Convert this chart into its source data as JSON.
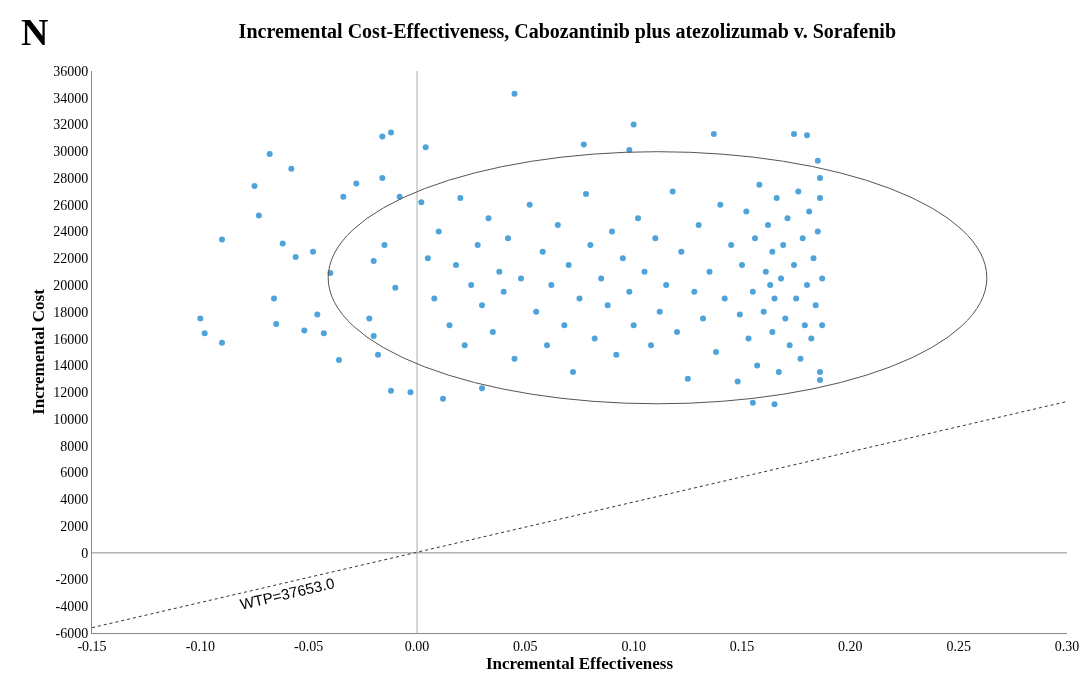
{
  "chart_data": {
    "type": "scatter",
    "title": "Incremental Cost-Effectiveness, Cabozantinib plus atezolizumab v. Sorafenib",
    "xlabel": "Incremental Effectiveness",
    "ylabel": "Incremental Cost",
    "annotations": [
      "N",
      "WTP=37653.0"
    ],
    "xlim": [
      -0.15,
      0.3
    ],
    "xticks": [
      {
        "value": -0.15,
        "label": "-0.15"
      },
      {
        "value": -0.1,
        "label": "-0.10"
      },
      {
        "value": -0.05,
        "label": "-0.05"
      },
      {
        "value": 0,
        "label": "0.00"
      },
      {
        "value": 0.05,
        "label": "0.05"
      },
      {
        "value": 0.1,
        "label": "0.10"
      },
      {
        "value": 0.15,
        "label": "0.15"
      },
      {
        "value": 0.2,
        "label": "0.20"
      },
      {
        "value": 0.25,
        "label": "0.25"
      },
      {
        "value": 0.3,
        "label": "0.30"
      }
    ],
    "ylim": [
      -6000,
      36000
    ],
    "yticks": [
      -6000,
      -4000,
      -2000,
      0,
      2000,
      4000,
      6000,
      8000,
      10000,
      12000,
      14000,
      16000,
      18000,
      20000,
      22000,
      24000,
      26000,
      28000,
      30000,
      32000,
      34000,
      36000
    ],
    "grid": false,
    "marker": "circle",
    "ref_lines": [
      {
        "axis": "x",
        "value": 0,
        "color": "#c8c8c8"
      },
      {
        "axis": "y",
        "value": 0,
        "color": "#b4b4b4"
      }
    ],
    "series": [
      {
        "color": "#4fa3db",
        "x": [
          -0.1,
          -0.098,
          -0.09,
          -0.09,
          -0.075,
          -0.073,
          -0.068,
          -0.066,
          -0.065,
          -0.062,
          -0.058,
          -0.056,
          -0.052,
          -0.048,
          -0.046,
          -0.043,
          -0.04,
          -0.036,
          -0.034,
          -0.028,
          -0.022,
          -0.02,
          -0.02,
          -0.018,
          -0.016,
          -0.016,
          -0.015,
          -0.012,
          -0.012,
          -0.01,
          -0.008,
          -0.003,
          0.002,
          0.004,
          0.005,
          0.008,
          0.01,
          0.012,
          0.015,
          0.018,
          0.02,
          0.022,
          0.025,
          0.028,
          0.03,
          0.03,
          0.033,
          0.035,
          0.038,
          0.04,
          0.042,
          0.045,
          0.045,
          0.048,
          0.052,
          0.055,
          0.058,
          0.06,
          0.062,
          0.065,
          0.068,
          0.07,
          0.072,
          0.075,
          0.077,
          0.078,
          0.08,
          0.082,
          0.085,
          0.088,
          0.09,
          0.092,
          0.095,
          0.098,
          0.098,
          0.1,
          0.1,
          0.102,
          0.105,
          0.108,
          0.11,
          0.112,
          0.115,
          0.118,
          0.12,
          0.122,
          0.125,
          0.128,
          0.13,
          0.132,
          0.135,
          0.137,
          0.138,
          0.14,
          0.142,
          0.145,
          0.148,
          0.149,
          0.15,
          0.152,
          0.153,
          0.155,
          0.155,
          0.156,
          0.157,
          0.158,
          0.16,
          0.161,
          0.162,
          0.163,
          0.164,
          0.164,
          0.165,
          0.165,
          0.166,
          0.167,
          0.168,
          0.169,
          0.17,
          0.171,
          0.172,
          0.174,
          0.174,
          0.175,
          0.176,
          0.177,
          0.178,
          0.179,
          0.18,
          0.18,
          0.181,
          0.182,
          0.183,
          0.184,
          0.185,
          0.185,
          0.186,
          0.186,
          0.186,
          0.186,
          0.187,
          0.187
        ],
        "values": [
          17500,
          16400,
          15700,
          23400,
          27400,
          25200,
          29800,
          19000,
          17100,
          23100,
          28700,
          22100,
          16600,
          22500,
          17800,
          16400,
          20900,
          14400,
          26600,
          27600,
          17500,
          21800,
          16200,
          14800,
          31100,
          28000,
          23000,
          31400,
          12100,
          19800,
          26600,
          12000,
          26200,
          30300,
          22000,
          19000,
          24000,
          11500,
          17000,
          21500,
          26500,
          15500,
          20000,
          23000,
          18500,
          12300,
          25000,
          16500,
          21000,
          19500,
          23500,
          14500,
          34300,
          20500,
          26000,
          18000,
          22500,
          15500,
          20000,
          24500,
          17000,
          21500,
          13500,
          19000,
          30500,
          26800,
          23000,
          16000,
          20500,
          18500,
          24000,
          14800,
          22000,
          19500,
          30100,
          17000,
          32000,
          25000,
          21000,
          15500,
          23500,
          18000,
          20000,
          27000,
          16500,
          22500,
          13000,
          19500,
          24500,
          17500,
          21000,
          31300,
          15000,
          26000,
          19000,
          23000,
          12800,
          17800,
          21500,
          25500,
          16000,
          19500,
          11200,
          23500,
          14000,
          27500,
          18000,
          21000,
          24500,
          20000,
          16500,
          22500,
          19000,
          11100,
          26500,
          13500,
          20500,
          23000,
          17500,
          25000,
          15500,
          21500,
          31300,
          19000,
          27000,
          14500,
          23500,
          17000,
          20000,
          31200,
          25500,
          16000,
          22000,
          18500,
          24000,
          29300,
          13500,
          26500,
          12900,
          28000,
          20500,
          17000
        ]
      },
      {
        "type": "line",
        "color": "#333333",
        "marker": "none",
        "line_style": "dotted",
        "x": [
          -0.15,
          0.3
        ],
        "values": [
          -5600,
          11300
        ]
      }
    ]
  }
}
